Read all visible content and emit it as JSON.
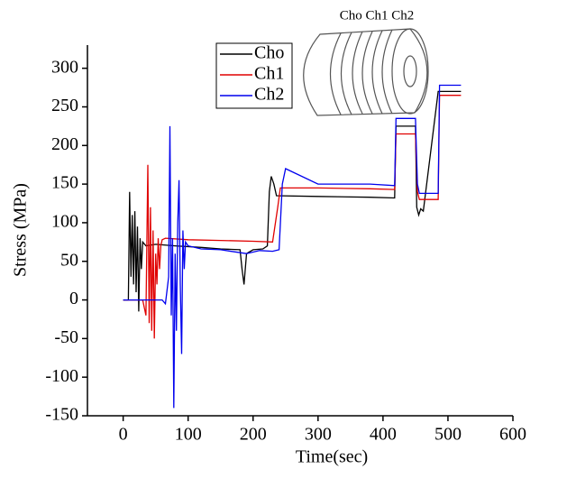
{
  "chart_data": {
    "type": "line",
    "xlabel": "Time(sec)",
    "ylabel": "Stress (MPa)",
    "annotation": "Cho Ch1 Ch2",
    "xlim": [
      -55,
      600
    ],
    "xticks": [
      0,
      100,
      200,
      300,
      400,
      500,
      600
    ],
    "ylim": [
      -150,
      330
    ],
    "yticks": [
      -150,
      -100,
      -50,
      0,
      50,
      100,
      150,
      200,
      250,
      300
    ],
    "legend": "top",
    "series": [
      {
        "name": "Cho",
        "color": "#000000",
        "x": [
          0,
          8,
          10,
          12,
          14,
          16,
          18,
          20,
          22,
          24,
          26,
          28,
          30,
          35,
          50,
          80,
          120,
          150,
          180,
          183,
          186,
          190,
          200,
          215,
          222,
          225,
          228,
          232,
          236,
          300,
          380,
          418,
          420,
          450,
          452,
          455,
          458,
          462,
          485,
          520
        ],
        "values": [
          0,
          0,
          140,
          30,
          110,
          20,
          115,
          10,
          95,
          -15,
          80,
          40,
          75,
          70,
          72,
          70,
          68,
          66,
          65,
          40,
          20,
          60,
          65,
          66,
          70,
          140,
          160,
          150,
          135,
          134,
          133,
          132,
          225,
          225,
          120,
          110,
          118,
          115,
          270,
          270
        ]
      },
      {
        "name": "Ch1",
        "color": "#e00000",
        "x": [
          0,
          30,
          35,
          38,
          40,
          42,
          44,
          46,
          48,
          50,
          52,
          54,
          56,
          58,
          60,
          65,
          100,
          150,
          200,
          230,
          238,
          242,
          245,
          300,
          380,
          418,
          420,
          450,
          453,
          456,
          485,
          487,
          520
        ],
        "values": [
          0,
          0,
          -20,
          175,
          -30,
          120,
          -40,
          90,
          -50,
          60,
          20,
          80,
          40,
          70,
          78,
          80,
          78,
          77,
          76,
          75,
          120,
          145,
          145,
          145,
          144,
          143,
          215,
          215,
          140,
          130,
          130,
          265,
          265
        ]
      },
      {
        "name": "Ch2",
        "color": "#0000ee",
        "x": [
          0,
          60,
          65,
          70,
          72,
          74,
          76,
          78,
          80,
          82,
          84,
          86,
          88,
          90,
          92,
          94,
          96,
          100,
          120,
          150,
          190,
          210,
          230,
          240,
          245,
          250,
          300,
          380,
          418,
          420,
          450,
          453,
          456,
          485,
          487,
          520
        ],
        "values": [
          0,
          0,
          -5,
          30,
          225,
          -20,
          80,
          -140,
          60,
          -40,
          100,
          155,
          20,
          -70,
          90,
          40,
          75,
          70,
          66,
          65,
          60,
          64,
          63,
          65,
          150,
          170,
          150,
          150,
          148,
          235,
          235,
          150,
          138,
          138,
          278,
          278
        ]
      }
    ]
  }
}
